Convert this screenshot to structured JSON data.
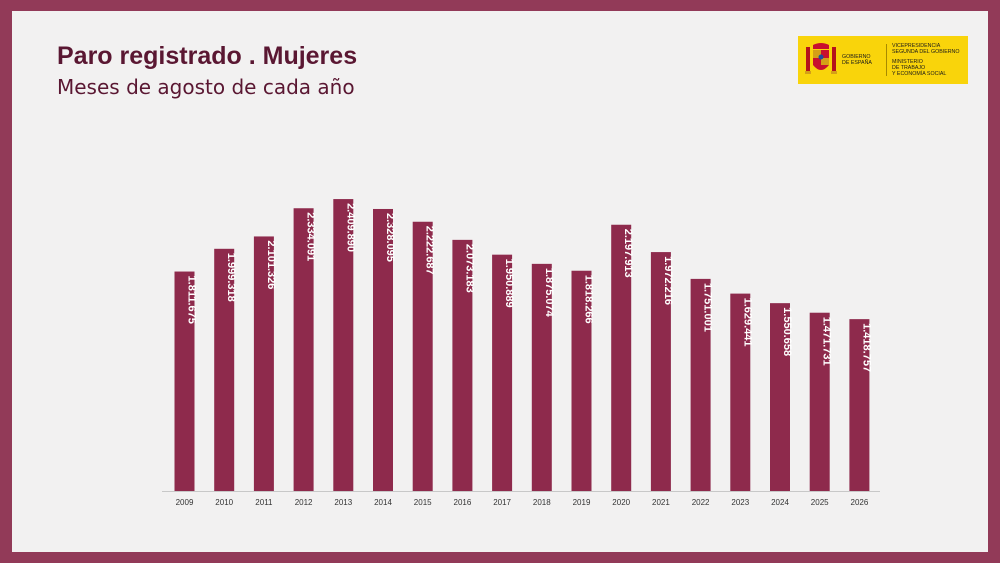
{
  "slide": {
    "title": "Paro registrado . Mujeres",
    "subtitle": "Meses de agosto de cada año"
  },
  "logo": {
    "left_line1": "GOBIERNO",
    "left_line2": "DE ESPAÑA",
    "right_line1": "VICEPRESIDENCIA",
    "right_line2": "SEGUNDA DEL GOBIERNO",
    "right_line3": "MINISTERIO",
    "right_line4": "DE TRABAJO",
    "right_line5": "Y ECONOMÍA SOCIAL",
    "icon": "coat-of-arms-icon"
  },
  "colors": {
    "bar": "#8E2A4C",
    "frame": "#923A58",
    "title": "#5A1732"
  },
  "chart_data": {
    "type": "bar",
    "categories": [
      "2009",
      "2010",
      "2011",
      "2012",
      "2013",
      "2014",
      "2015",
      "2016",
      "2017",
      "2018",
      "2019",
      "2020",
      "2021",
      "2022",
      "2023",
      "2024",
      "2025",
      "2026"
    ],
    "values": [
      1811675,
      1999318,
      2101326,
      2334091,
      2409890,
      2328095,
      2222687,
      2073183,
      1950889,
      1875074,
      1818266,
      2197913,
      1972216,
      1751001,
      1629441,
      1550658,
      1471731,
      1418757
    ],
    "labels": [
      "1.811.675",
      "1.999.318",
      "2.101.326",
      "2.334.091",
      "2.409.890",
      "2.328.095",
      "2.222.687",
      "2.073.183",
      "1.950.889",
      "1.875.074",
      "1.818.266",
      "2.197.913",
      "1.972.216",
      "1.751.001",
      "1.629.441",
      "1.550.658",
      "1.471.731",
      "1.418.757"
    ],
    "title": "Paro registrado . Mujeres",
    "subtitle": "Meses de agosto de cada año",
    "ylim": [
      0,
      2600000
    ],
    "grid": false,
    "legend": "none",
    "data_labels": "inside-bar-rotated"
  }
}
